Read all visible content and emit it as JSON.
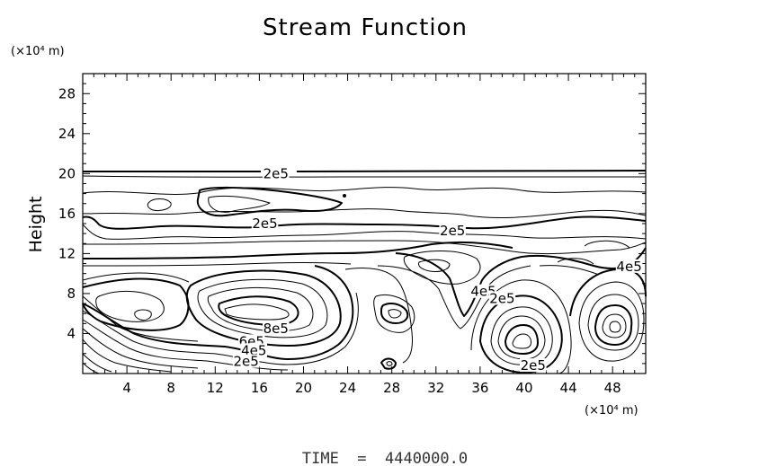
{
  "chart_data": {
    "type": "contour",
    "title": "Stream Function",
    "xlabel": "",
    "ylabel": "Height",
    "x_unit_label": "(×10⁴ m)",
    "y_unit_label": "(×10⁴ m)",
    "xlim": [
      0,
      51
    ],
    "ylim": [
      0,
      30
    ],
    "x_ticks": [
      4,
      8,
      12,
      16,
      20,
      24,
      28,
      32,
      36,
      40,
      44,
      48
    ],
    "y_ticks": [
      4,
      8,
      12,
      16,
      20,
      24,
      28
    ],
    "footer": "TIME  =  4440000.0",
    "contour_labels": [
      {
        "text": "2e5",
        "x": 17.5,
        "y": 20
      },
      {
        "text": "2e5",
        "x": 16.5,
        "y": 15
      },
      {
        "text": "2e5",
        "x": 33.5,
        "y": 14.3
      },
      {
        "text": "4e5",
        "x": 49.5,
        "y": 10.7
      },
      {
        "text": "4e5",
        "x": 36.3,
        "y": 8.2
      },
      {
        "text": "2e5",
        "x": 38,
        "y": 7.5
      },
      {
        "text": "8e5",
        "x": 17.5,
        "y": 4.5
      },
      {
        "text": "6e5",
        "x": 15.3,
        "y": 3.2
      },
      {
        "text": "4e5",
        "x": 15.5,
        "y": 2.3
      },
      {
        "text": "2e5",
        "x": 14.8,
        "y": 1.2
      },
      {
        "text": "2e5",
        "x": 40.8,
        "y": 0.8
      }
    ]
  }
}
